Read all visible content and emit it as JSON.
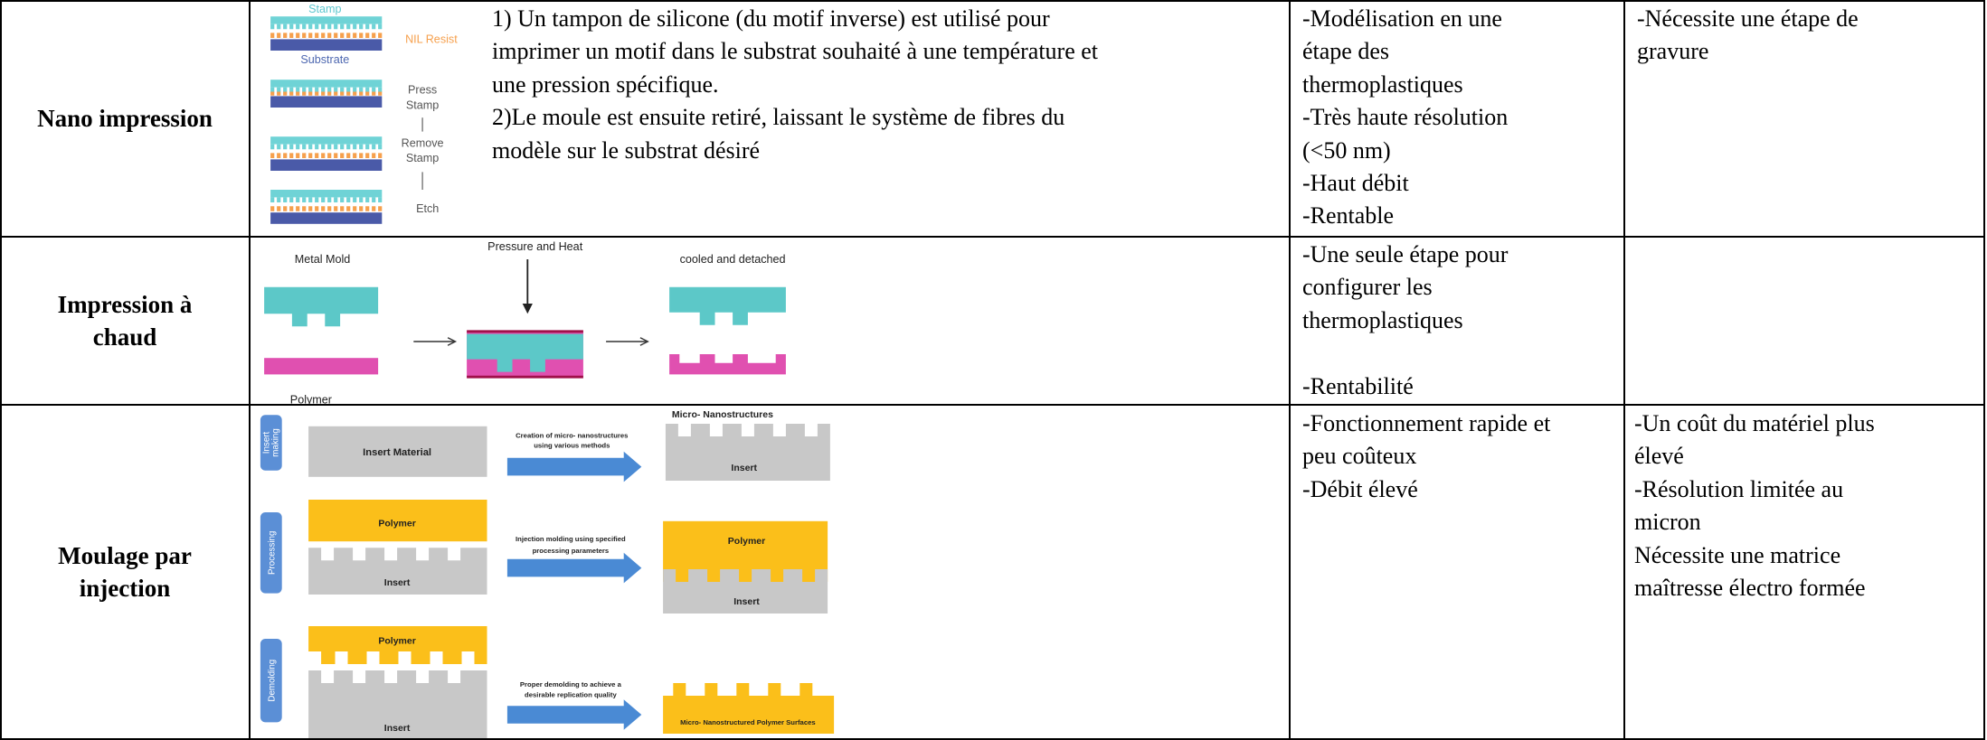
{
  "table": {
    "rows": [
      {
        "method": [
          "Nano impression"
        ],
        "figure_labels": [
          "Stamp",
          "NIL Resist",
          "Substrate",
          "Press",
          "Stamp",
          "Remove",
          "Stamp",
          "Etch"
        ],
        "description": [
          "1) Un tampon de silicone (du motif inverse) est utilisé pour",
          "imprimer un motif dans le substrat souhaité à une température et",
          "une pression spécifique.",
          "2)Le moule est ensuite retiré, laissant le système de fibres du",
          "modèle sur le substrat désiré"
        ],
        "advantages": [
          "-Modélisation en une",
          "étape des",
          "thermoplastiques",
          "-Très haute résolution",
          "(<50 nm)",
          "-Haut débit",
          "-Rentable"
        ],
        "disadvantages": [
          "-Nécessite une étape de",
          "gravure"
        ]
      },
      {
        "method": [
          "Impression à",
          "chaud"
        ],
        "figure_labels": [
          "Metal Mold",
          "Pressure and Heat",
          "cooled and detached",
          "Polymer"
        ],
        "advantages": [
          "-Une seule étape pour",
          "configurer les",
          "thermoplastiques",
          "-Rentabilité"
        ]
      },
      {
        "method": [
          "Moulage par",
          "injection"
        ],
        "figure_labels": [
          "Insert",
          "making",
          "Insert Material",
          "Creation of micro- nanostructures",
          "using various methods",
          "Micro- Nanostructures",
          "Insert",
          "Processing",
          "Polymer",
          "Insert",
          "Injection molding using specified",
          "processing parameters",
          "Polymer",
          "Insert",
          "Demolding",
          "Polymer",
          "Insert",
          "Proper demolding to achieve a",
          "desirable replication quality",
          "Micro- Nanostructured Polymer Surfaces"
        ],
        "advantages": [
          "-Fonctionnement rapide et",
          "peu coûteux",
          "-Débit élevé"
        ],
        "disadvantages": [
          "-Un coût du matériel plus",
          "élevé",
          "-Résolution limitée au",
          "micron",
          "Nécessite une matrice",
          "maîtresse électro formée"
        ]
      }
    ]
  }
}
